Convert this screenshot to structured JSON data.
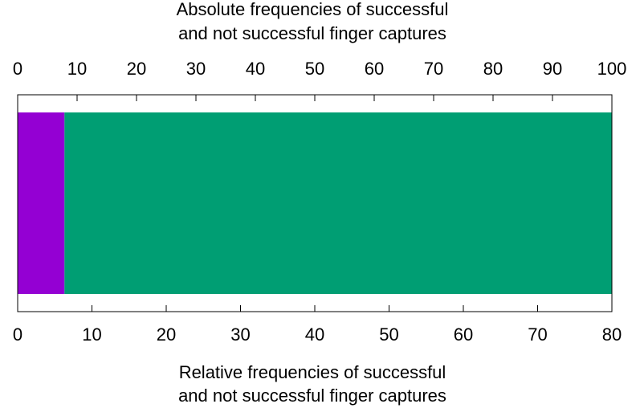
{
  "chart_data": {
    "type": "bar",
    "orientation": "horizontal-stacked",
    "top_axis": {
      "label_lines": [
        "Absolute frequencies of successful",
        "and not successful finger captures"
      ],
      "range": [
        0,
        100
      ],
      "ticks": [
        0,
        10,
        20,
        30,
        40,
        50,
        60,
        70,
        80,
        90,
        100
      ]
    },
    "bottom_axis": {
      "label_lines": [
        "Relative frequencies of successful",
        "and not successful finger captures"
      ],
      "range": [
        0,
        80
      ],
      "ticks": [
        0,
        10,
        20,
        30,
        40,
        50,
        60,
        70,
        80
      ]
    },
    "series": [
      {
        "values": [
          6.3
        ],
        "color": "#9400d3"
      },
      {
        "values": [
          73.7
        ],
        "color": "#009e73"
      }
    ],
    "grid": false,
    "legend": "none"
  }
}
